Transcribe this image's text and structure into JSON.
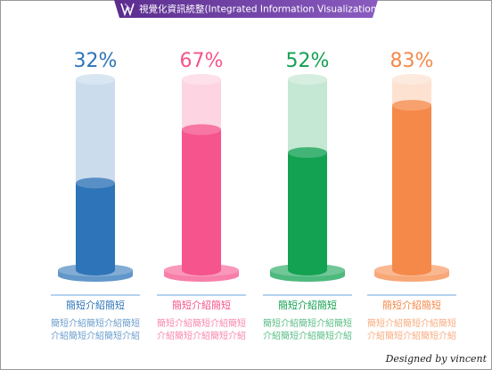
{
  "chart_data": {
    "type": "cylinder",
    "title": "視覺化資訊統整(Integrated Information Visualization)",
    "values": [
      32,
      67,
      52,
      83
    ],
    "value_labels": [
      "32%",
      "67%",
      "52%",
      "83%"
    ],
    "ylim": [
      0,
      100
    ],
    "colors": [
      "#2e74b8",
      "#f5548c",
      "#13a152",
      "#f5894a"
    ],
    "categories": [
      "簡短介紹簡短",
      "簡短介紹簡短",
      "簡短介紹簡短",
      "簡短介紹簡短"
    ],
    "descriptions": [
      [
        "簡短介紹簡短介紹簡短",
        "介紹簡短介紹簡短介紹"
      ],
      [
        "簡短介紹簡短介紹簡短",
        "介紹簡短介紹簡短介紹"
      ],
      [
        "簡短介紹簡短介紹簡短",
        "介紹簡短介紹簡短介紹"
      ],
      [
        "簡短介紹簡短介紹簡短",
        "介紹簡短介紹簡短介紹"
      ]
    ],
    "credit": "Designed by vincent"
  }
}
